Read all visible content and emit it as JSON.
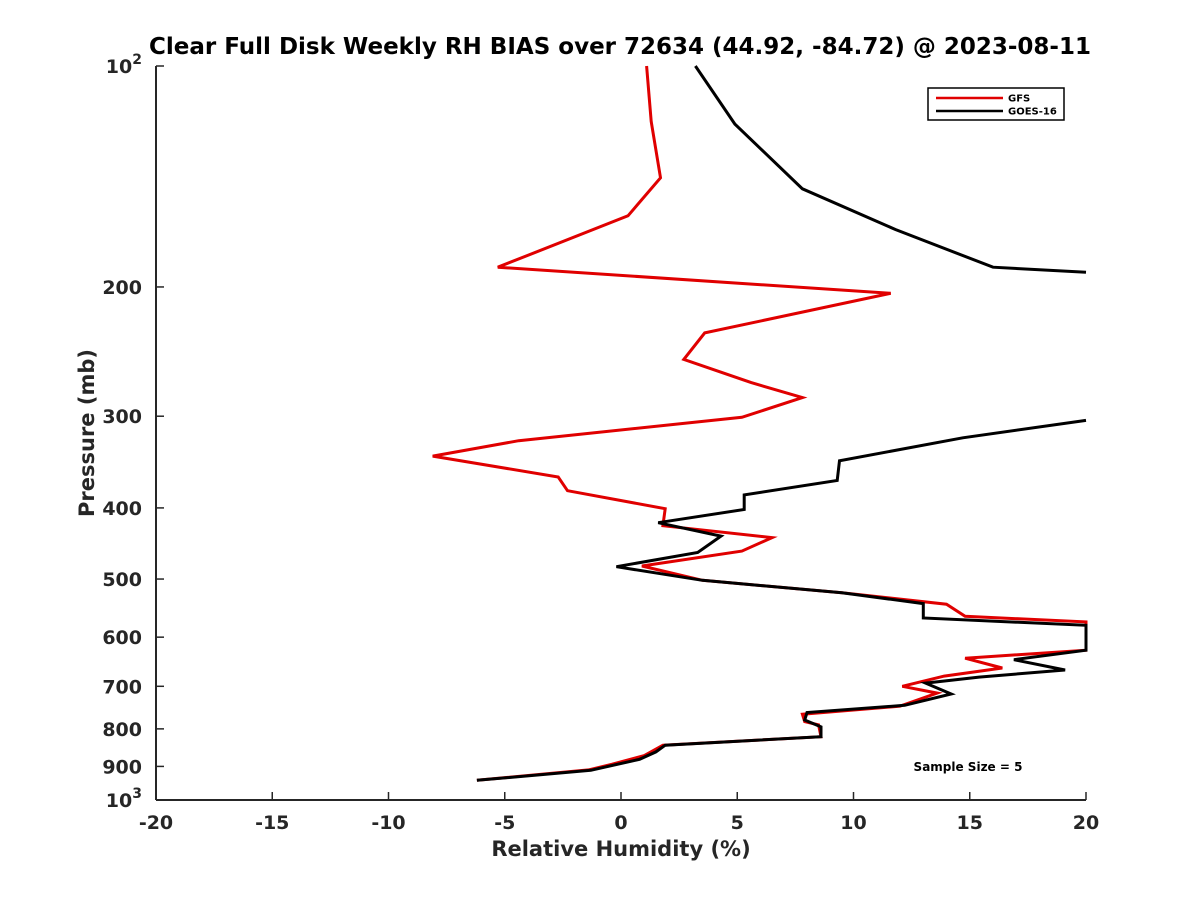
{
  "chart_data": {
    "type": "line",
    "title": "Clear Full Disk Weekly RH BIAS over 72634 (44.92, -84.72) @ 2023-08-11",
    "xlabel": "Relative Humidity (%)",
    "ylabel": "Pressure (mb)",
    "xlim": [
      -20,
      20
    ],
    "ylim": [
      100,
      1000
    ],
    "yscale": "log",
    "y_reversed": true,
    "grid": false,
    "legend_position": "top-right",
    "x_ticks": [
      "-20",
      "-15",
      "-10",
      "-5",
      "0",
      "5",
      "10",
      "15",
      "20"
    ],
    "y_ticks": [
      {
        "value": 100,
        "base": "10",
        "exp": "2"
      },
      {
        "value": 200,
        "label": "200"
      },
      {
        "value": 300,
        "label": "300"
      },
      {
        "value": 400,
        "label": "400"
      },
      {
        "value": 500,
        "label": "500"
      },
      {
        "value": 600,
        "label": "600"
      },
      {
        "value": 700,
        "label": "700"
      },
      {
        "value": 800,
        "label": "800"
      },
      {
        "value": 900,
        "label": "900"
      },
      {
        "value": 1000,
        "base": "10",
        "exp": "3"
      }
    ],
    "annotation": "Sample Size = 5",
    "series": [
      {
        "name": "GFS",
        "color": "#e00000",
        "points": [
          [
            1.1,
            100
          ],
          [
            1.3,
            119
          ],
          [
            1.7,
            142
          ],
          [
            0.3,
            160
          ],
          [
            -5.3,
            188
          ],
          [
            11.6,
            204
          ],
          [
            3.6,
            231
          ],
          [
            2.7,
            251
          ],
          [
            5.6,
            270
          ],
          [
            7.8,
            283
          ],
          [
            5.2,
            301
          ],
          [
            -4.4,
            324
          ],
          [
            -8.1,
            340
          ],
          [
            -2.7,
            363
          ],
          [
            -2.3,
            379
          ],
          [
            1.9,
            401
          ],
          [
            1.8,
            423
          ],
          [
            6.5,
            439
          ],
          [
            5.2,
            458
          ],
          [
            0.9,
            480
          ],
          [
            3.5,
            502
          ],
          [
            9.5,
            522
          ],
          [
            14.0,
            541
          ],
          [
            14.8,
            562
          ],
          [
            20.0,
            572
          ],
          [
            20.0,
            625
          ],
          [
            14.8,
            641
          ],
          [
            16.4,
            661
          ],
          [
            13.9,
            678
          ],
          [
            12.1,
            700
          ],
          [
            13.6,
            715
          ],
          [
            12.0,
            745
          ],
          [
            7.8,
            764
          ],
          [
            7.9,
            782
          ],
          [
            8.5,
            790
          ],
          [
            8.6,
            820
          ],
          [
            1.8,
            842
          ],
          [
            1.0,
            870
          ],
          [
            -0.4,
            894
          ],
          [
            -1.4,
            910
          ],
          [
            -6.2,
            940
          ]
        ]
      },
      {
        "name": "GOES-16",
        "color": "#000000",
        "points": [
          [
            3.2,
            100
          ],
          [
            4.9,
            120
          ],
          [
            7.8,
            147
          ],
          [
            11.8,
            167
          ],
          [
            16.0,
            188
          ],
          [
            20.0,
            191
          ],
          [
            null,
            200
          ],
          [
            20.0,
            304
          ],
          [
            14.7,
            321
          ],
          [
            9.4,
            345
          ],
          [
            9.3,
            367
          ],
          [
            5.3,
            384
          ],
          [
            5.3,
            402
          ],
          [
            1.6,
            419
          ],
          [
            4.3,
            437
          ],
          [
            3.3,
            460
          ],
          [
            -0.2,
            481
          ],
          [
            3.5,
            502
          ],
          [
            9.5,
            522
          ],
          [
            13.0,
            540
          ],
          [
            13.0,
            565
          ],
          [
            20.0,
            578
          ],
          [
            20.0,
            625
          ],
          [
            16.9,
            644
          ],
          [
            19.1,
            665
          ],
          [
            15.4,
            680
          ],
          [
            13.1,
            693
          ],
          [
            14.2,
            717
          ],
          [
            12.2,
            743
          ],
          [
            8.0,
            760
          ],
          [
            7.9,
            778
          ],
          [
            8.6,
            795
          ],
          [
            8.6,
            820
          ],
          [
            1.9,
            842
          ],
          [
            1.5,
            860
          ],
          [
            0.8,
            880
          ],
          [
            -1.3,
            911
          ],
          [
            -6.2,
            940
          ]
        ]
      }
    ]
  }
}
